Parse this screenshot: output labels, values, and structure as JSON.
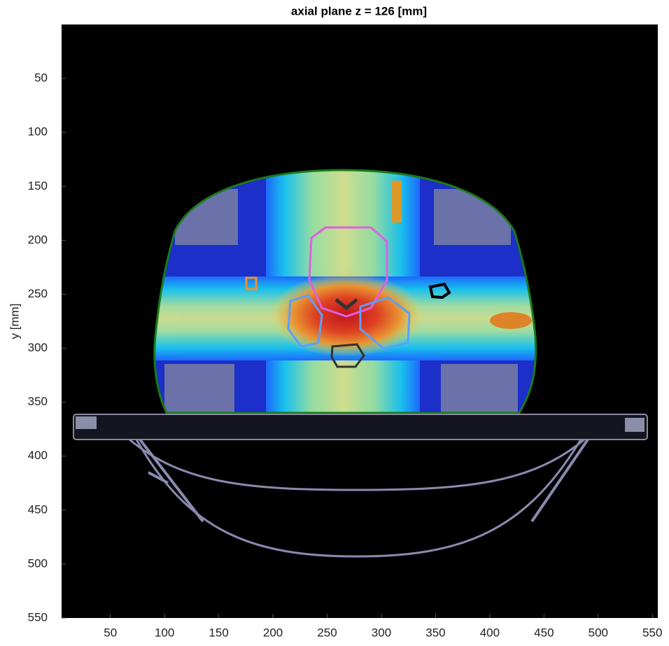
{
  "chart_data": {
    "type": "image",
    "title": "axial plane z = 126 [mm]",
    "y_label": "y [mm]",
    "xlim": [
      5,
      555
    ],
    "ylim": [
      0,
      550
    ],
    "xticks": [
      50,
      100,
      150,
      200,
      250,
      300,
      350,
      400,
      450,
      500,
      550
    ],
    "yticks": [
      50,
      100,
      150,
      200,
      250,
      300,
      350,
      400,
      450,
      500,
      550
    ]
  }
}
